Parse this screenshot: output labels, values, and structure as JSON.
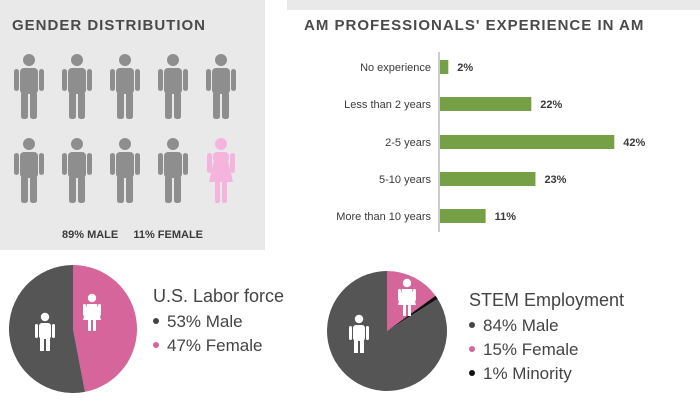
{
  "gender_panel": {
    "title": "GENDER DISTRIBUTION",
    "male_label": "89% MALE",
    "female_label": "11% FEMALE",
    "icons": [
      "male",
      "male",
      "male",
      "male",
      "male",
      "male",
      "male",
      "male",
      "male",
      "female"
    ]
  },
  "colors": {
    "male_icon": "#8e8e8e",
    "female_icon": "#f5b4dc",
    "bar": "#76a046",
    "pie_male": "#555555",
    "pie_female": "#d5659b",
    "pie_minority": "#111111",
    "panel_bg": "#e9e9ea"
  },
  "chart_data": [
    {
      "type": "bar",
      "orientation": "horizontal",
      "title": "AM PROFESSIONALS' EXPERIENCE IN AM",
      "categories": [
        "No experience",
        "Less than 2 years",
        "2-5 years",
        "5-10 years",
        "More than 10 years"
      ],
      "values": [
        2,
        22,
        42,
        23,
        11
      ],
      "value_labels": [
        "2%",
        "22%",
        "42%",
        "23%",
        "11%"
      ]
    },
    {
      "type": "pie",
      "title": "U.S. Labor force",
      "labels": [
        "Male",
        "Female"
      ],
      "values": [
        53,
        47
      ],
      "legend": [
        "53% Male",
        "47% Female"
      ]
    },
    {
      "type": "pie",
      "title": "STEM Employment",
      "labels": [
        "Male",
        "Female",
        "Minority"
      ],
      "values": [
        84,
        15,
        1
      ],
      "legend": [
        "84% Male",
        "15% Female",
        "1% Minority"
      ]
    }
  ]
}
